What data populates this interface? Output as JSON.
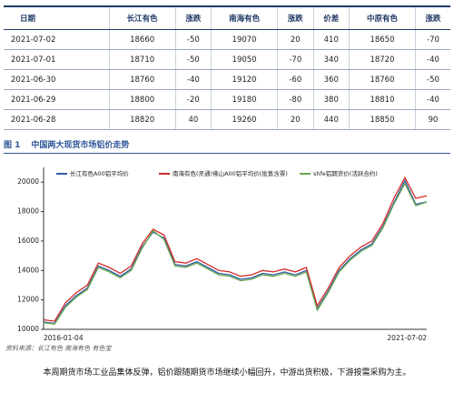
{
  "table": {
    "header": [
      "日期",
      "长江有色",
      "涨跌",
      "南海有色",
      "涨跌",
      "价差",
      "中原有色",
      "涨跌"
    ],
    "rows": [
      [
        "2021-07-02",
        18660,
        -50,
        19070,
        20,
        410,
        18650,
        -70
      ],
      [
        "2021-07-01",
        18710,
        -50,
        19050,
        -70,
        340,
        18720,
        -40
      ],
      [
        "2021-06-30",
        18760,
        -40,
        19120,
        -60,
        360,
        18760,
        -50
      ],
      [
        "2021-06-29",
        18800,
        -20,
        19180,
        -80,
        380,
        18810,
        -40
      ],
      [
        "2021-06-28",
        18820,
        40,
        19260,
        20,
        440,
        18850,
        90
      ]
    ]
  },
  "figure": {
    "number": "图 1",
    "title": "中国两大现货市场铝价走势"
  },
  "chart_data": {
    "type": "line",
    "categories": [
      "2016-01-04",
      null,
      null,
      null,
      null,
      null,
      null,
      null,
      null,
      null,
      null,
      null,
      null,
      null,
      null,
      null,
      null,
      null,
      null,
      null,
      null,
      null,
      null,
      null,
      null,
      null,
      null,
      null,
      null,
      null,
      null,
      null,
      null,
      null,
      null,
      "2021-07-02"
    ],
    "series": [
      {
        "name": "长江有色A00铝平均价",
        "color": "#2f5fa8",
        "values": [
          10500,
          10400,
          11600,
          12300,
          12800,
          14300,
          14000,
          13600,
          14100,
          15600,
          16600,
          16200,
          14400,
          14300,
          14600,
          14200,
          13800,
          13700,
          13400,
          13500,
          13800,
          13700,
          13900,
          13700,
          14000,
          11400,
          12600,
          14000,
          14800,
          15400,
          15800,
          17000,
          18600,
          20100,
          18500,
          18660
        ]
      },
      {
        "name": "南海有色(灵通)佛山A00铝平均价(批售含票)",
        "color": "#d42a2a",
        "values": [
          10650,
          10550,
          11800,
          12500,
          13000,
          14500,
          14200,
          13800,
          14300,
          15800,
          16800,
          16400,
          14600,
          14500,
          14800,
          14400,
          14000,
          13900,
          13600,
          13700,
          14000,
          13900,
          14100,
          13900,
          14200,
          11600,
          12800,
          14200,
          15000,
          15600,
          16000,
          17200,
          18900,
          20300,
          18900,
          19070
        ]
      },
      {
        "name": "shfe铝期货价(活跃合约)",
        "color": "#6aa84f",
        "values": [
          10450,
          10350,
          11500,
          12200,
          12700,
          14200,
          13900,
          13500,
          14000,
          15500,
          16700,
          16100,
          14300,
          14200,
          14500,
          14100,
          13700,
          13600,
          13300,
          13400,
          13700,
          13600,
          13800,
          13600,
          13900,
          11300,
          12500,
          13900,
          14700,
          15300,
          15700,
          16900,
          18500,
          19900,
          18400,
          18650
        ]
      }
    ],
    "ylim": [
      10000,
      21000
    ],
    "yticks": [
      10000,
      12000,
      14000,
      16000,
      18000,
      20000
    ]
  },
  "source": "资料来源：长江有色  南海有色  有色宝",
  "note": "本周期货市场工业品集体反弹，铝价跟随期货市场继续小幅回升，中游出货积极，下游按需采购为主。"
}
